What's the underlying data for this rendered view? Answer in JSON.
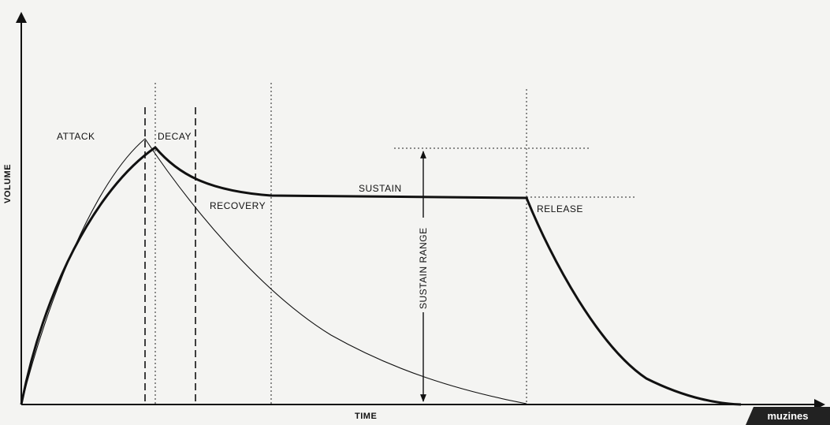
{
  "labels": {
    "attack": "ATTACK",
    "decay": "DECAY",
    "recovery": "RECOVERY",
    "sustain": "SUSTAIN",
    "release": "RELEASE",
    "sustain_range": "SUSTAIN RANGE",
    "x_axis": "TIME",
    "y_axis": "VOLUME"
  },
  "watermark": "muzines"
}
